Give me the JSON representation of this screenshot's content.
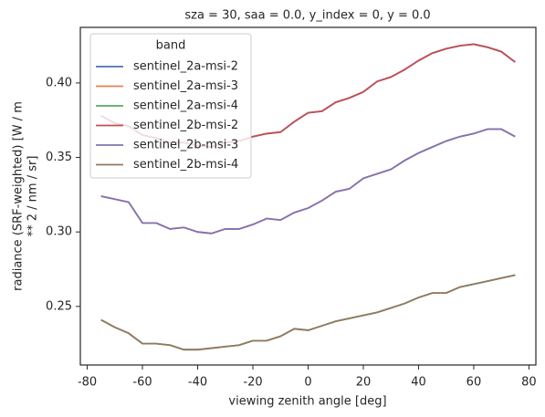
{
  "chart_data": {
    "type": "line",
    "title": "sza = 30, saa = 0.0, y_index = 0, y = 0.0",
    "xlabel": "viewing zenith angle [deg]",
    "ylabel": [
      "radiance (SRF-weighted) [W / m",
      "** 2 / nm / sr]"
    ],
    "x": [
      -75,
      -70,
      -65,
      -60,
      -55,
      -50,
      -45,
      -40,
      -35,
      -30,
      -25,
      -20,
      -15,
      -10,
      -5,
      0,
      5,
      10,
      15,
      20,
      25,
      30,
      35,
      40,
      45,
      50,
      55,
      60,
      65,
      70,
      75
    ],
    "series": [
      {
        "name": "sentinel_2a-msi-2",
        "color": "#4c72b0",
        "values": [
          0.378,
          0.373,
          0.371,
          0.365,
          0.363,
          0.36,
          0.36,
          0.358,
          0.357,
          0.36,
          0.361,
          0.364,
          0.366,
          0.367,
          0.374,
          0.38,
          0.381,
          0.387,
          0.39,
          0.394,
          0.401,
          0.404,
          0.409,
          0.415,
          0.42,
          0.423,
          0.425,
          0.426,
          0.424,
          0.421,
          0.414
        ]
      },
      {
        "name": "sentinel_2a-msi-3",
        "color": "#dd8452",
        "values": [
          0.324,
          0.322,
          0.32,
          0.306,
          0.306,
          0.302,
          0.303,
          0.3,
          0.299,
          0.302,
          0.302,
          0.305,
          0.309,
          0.308,
          0.313,
          0.316,
          0.321,
          0.327,
          0.329,
          0.336,
          0.339,
          0.342,
          0.348,
          0.353,
          0.357,
          0.361,
          0.364,
          0.366,
          0.369,
          0.369,
          0.364
        ]
      },
      {
        "name": "sentinel_2a-msi-4",
        "color": "#55a868",
        "values": [
          0.241,
          0.236,
          0.232,
          0.225,
          0.225,
          0.224,
          0.221,
          0.221,
          0.222,
          0.223,
          0.224,
          0.227,
          0.227,
          0.23,
          0.235,
          0.234,
          0.237,
          0.24,
          0.242,
          0.244,
          0.246,
          0.249,
          0.252,
          0.256,
          0.259,
          0.259,
          0.263,
          0.265,
          0.267,
          0.269,
          0.271
        ]
      },
      {
        "name": "sentinel_2b-msi-2",
        "color": "#c44e52",
        "values": [
          0.378,
          0.373,
          0.371,
          0.365,
          0.363,
          0.36,
          0.36,
          0.358,
          0.357,
          0.36,
          0.361,
          0.364,
          0.366,
          0.367,
          0.374,
          0.38,
          0.381,
          0.387,
          0.39,
          0.394,
          0.401,
          0.404,
          0.409,
          0.415,
          0.42,
          0.423,
          0.425,
          0.426,
          0.424,
          0.421,
          0.414
        ]
      },
      {
        "name": "sentinel_2b-msi-3",
        "color": "#8172b3",
        "values": [
          0.324,
          0.322,
          0.32,
          0.306,
          0.306,
          0.302,
          0.303,
          0.3,
          0.299,
          0.302,
          0.302,
          0.305,
          0.309,
          0.308,
          0.313,
          0.316,
          0.321,
          0.327,
          0.329,
          0.336,
          0.339,
          0.342,
          0.348,
          0.353,
          0.357,
          0.361,
          0.364,
          0.366,
          0.369,
          0.369,
          0.364
        ]
      },
      {
        "name": "sentinel_2b-msi-4",
        "color": "#937860",
        "values": [
          0.241,
          0.236,
          0.232,
          0.225,
          0.225,
          0.224,
          0.221,
          0.221,
          0.222,
          0.223,
          0.224,
          0.227,
          0.227,
          0.23,
          0.235,
          0.234,
          0.237,
          0.24,
          0.242,
          0.244,
          0.246,
          0.249,
          0.252,
          0.256,
          0.259,
          0.259,
          0.263,
          0.265,
          0.267,
          0.269,
          0.271
        ]
      }
    ],
    "legend_title": "band",
    "legend": "upper left",
    "xlim": [
      -82.5,
      82.5
    ],
    "xticks": [
      -80,
      -60,
      -40,
      -20,
      0,
      20,
      40,
      60,
      80
    ],
    "ylim": [
      0.2107,
      0.4373
    ],
    "yticks": [
      0.25,
      {
        "value": 0.3,
        "label": "0.30"
      },
      0.35,
      {
        "value": 0.4,
        "label": "0.40"
      }
    ],
    "grid": false
  }
}
